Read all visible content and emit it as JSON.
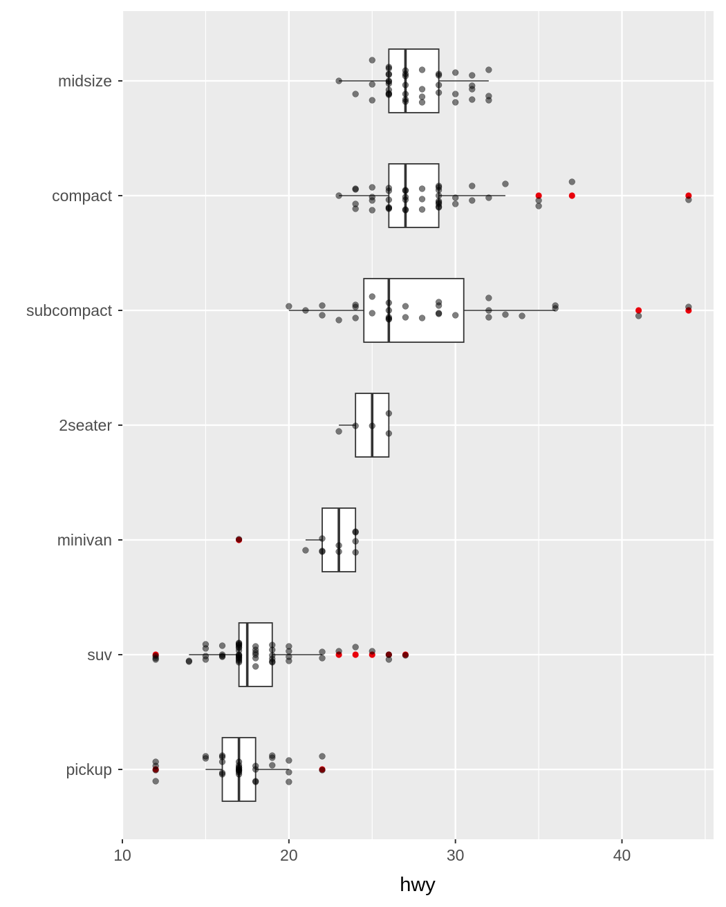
{
  "chart_data": {
    "type": "boxplot",
    "orientation": "horizontal",
    "title": "",
    "xlabel": "hwy",
    "ylabel": "",
    "xlim": [
      10,
      45.5
    ],
    "x_ticks": [
      10,
      20,
      30,
      40
    ],
    "grid": true,
    "legend": "none",
    "categories": [
      "midsize",
      "compact",
      "subcompact",
      "2seater",
      "minivan",
      "suv",
      "pickup"
    ],
    "boxes": [
      {
        "category": "midsize",
        "whisker_low": 23,
        "q1": 26,
        "median": 27,
        "q3": 29,
        "whisker_high": 32,
        "outliers": []
      },
      {
        "category": "compact",
        "whisker_low": 23,
        "q1": 26,
        "median": 27,
        "q3": 29,
        "whisker_high": 33,
        "outliers": [
          35,
          37,
          44
        ]
      },
      {
        "category": "subcompact",
        "whisker_low": 20,
        "q1": 24.5,
        "median": 26,
        "q3": 30.5,
        "whisker_high": 36,
        "outliers": [
          41,
          44
        ]
      },
      {
        "category": "2seater",
        "whisker_low": 23,
        "q1": 24,
        "median": 25,
        "q3": 26,
        "whisker_high": 26,
        "outliers": []
      },
      {
        "category": "minivan",
        "whisker_low": 21,
        "q1": 22,
        "median": 23,
        "q3": 24,
        "whisker_high": 24,
        "outliers": [
          17
        ]
      },
      {
        "category": "suv",
        "whisker_low": 14,
        "q1": 17,
        "median": 17.5,
        "q3": 19,
        "whisker_high": 22,
        "outliers": [
          12,
          23,
          24,
          25,
          26,
          27
        ]
      },
      {
        "category": "pickup",
        "whisker_low": 15,
        "q1": 16,
        "median": 17,
        "q3": 18,
        "whisker_high": 20,
        "outliers": [
          12,
          22
        ]
      }
    ],
    "jitter_points": {
      "midsize": [
        [
          23,
          0.0
        ],
        [
          24,
          0.19
        ],
        [
          25,
          0.28
        ],
        [
          25,
          0.05
        ],
        [
          26,
          0.18
        ],
        [
          26,
          -0.1
        ],
        [
          26,
          0.01
        ],
        [
          26,
          0.0
        ],
        [
          26,
          -0.18
        ],
        [
          26,
          0.13
        ],
        [
          26,
          -0.09
        ],
        [
          26,
          0.19
        ],
        [
          27,
          0.27
        ],
        [
          27,
          -0.1
        ],
        [
          27,
          0.06
        ],
        [
          27,
          -0.07
        ],
        [
          27,
          0.19
        ],
        [
          27,
          -0.15
        ],
        [
          28,
          0.23
        ],
        [
          28,
          -0.16
        ],
        [
          28,
          0.12
        ],
        [
          29,
          -0.08
        ],
        [
          29,
          0.06
        ],
        [
          29,
          0.17
        ],
        [
          30,
          -0.12
        ],
        [
          30,
          0.19
        ],
        [
          30,
          0.31
        ],
        [
          31,
          0.27
        ],
        [
          31,
          0.07
        ],
        [
          31,
          0.12
        ],
        [
          31,
          -0.08
        ],
        [
          32,
          -0.16
        ],
        [
          32,
          0.22
        ],
        [
          32,
          0.28
        ],
        [
          28,
          0.31
        ],
        [
          27,
          0.3
        ],
        [
          26,
          -0.2
        ],
        [
          26,
          0.2
        ],
        [
          25,
          -0.3
        ],
        [
          29,
          -0.1
        ],
        [
          26,
          0.04
        ]
      ],
      "compact": [
        [
          23,
          0.0
        ],
        [
          24,
          -0.09
        ],
        [
          24,
          0.12
        ],
        [
          24,
          0.19
        ],
        [
          24,
          -0.1
        ],
        [
          25,
          -0.12
        ],
        [
          25,
          0.02
        ],
        [
          25,
          0.21
        ],
        [
          25,
          0.07
        ],
        [
          26,
          0.18
        ],
        [
          26,
          -0.07
        ],
        [
          26,
          -0.11
        ],
        [
          26,
          0.06
        ],
        [
          26,
          0.17
        ],
        [
          26,
          0.19
        ],
        [
          27,
          0.06
        ],
        [
          27,
          -0.07
        ],
        [
          27,
          0.21
        ],
        [
          27,
          0.2
        ],
        [
          27,
          -0.08
        ],
        [
          27,
          0.02
        ],
        [
          28,
          0.2
        ],
        [
          28,
          -0.1
        ],
        [
          29,
          0.12
        ],
        [
          29,
          0.16
        ],
        [
          29,
          0.08
        ],
        [
          29,
          -0.12
        ],
        [
          29,
          -0.08
        ],
        [
          29,
          -0.14
        ],
        [
          29,
          0.0
        ],
        [
          29,
          0.17
        ],
        [
          30,
          0.12
        ],
        [
          30,
          0.03
        ],
        [
          31,
          0.07
        ],
        [
          31,
          -0.14
        ],
        [
          32,
          0.03
        ],
        [
          33,
          -0.17
        ],
        [
          35,
          0.15
        ],
        [
          35,
          0.07
        ],
        [
          37,
          -0.2
        ],
        [
          44,
          0.06
        ],
        [
          29,
          0.1
        ],
        [
          28,
          0.05
        ]
      ],
      "subcompact": [
        [
          20,
          -0.06
        ],
        [
          21,
          0.0
        ],
        [
          22,
          0.07
        ],
        [
          22,
          -0.07
        ],
        [
          23,
          0.14
        ],
        [
          24,
          0.11
        ],
        [
          24,
          -0.05
        ],
        [
          24,
          -0.08
        ],
        [
          25,
          -0.2
        ],
        [
          25,
          0.04
        ],
        [
          26,
          0.1
        ],
        [
          26,
          0.12
        ],
        [
          26,
          0.13
        ],
        [
          26,
          0.0
        ],
        [
          26,
          -0.11
        ],
        [
          27,
          0.1
        ],
        [
          27,
          -0.06
        ],
        [
          28,
          0.11
        ],
        [
          29,
          -0.07
        ],
        [
          29,
          0.05
        ],
        [
          29,
          0.04
        ],
        [
          29,
          -0.12
        ],
        [
          30,
          0.07
        ],
        [
          32,
          0.1
        ],
        [
          32,
          0.0
        ],
        [
          32,
          -0.18
        ],
        [
          33,
          0.06
        ],
        [
          34,
          0.08
        ],
        [
          36,
          -0.03
        ],
        [
          36,
          -0.07
        ],
        [
          41,
          0.08
        ],
        [
          44,
          -0.05
        ]
      ],
      "2seater": [
        [
          23,
          0.09
        ],
        [
          24,
          0.01
        ],
        [
          25,
          0.01
        ],
        [
          26,
          0.12
        ],
        [
          26,
          -0.17
        ]
      ],
      "minivan": [
        [
          17,
          -0.01
        ],
        [
          21,
          0.15
        ],
        [
          22,
          0.17
        ],
        [
          22,
          -0.02
        ],
        [
          22,
          0.16
        ],
        [
          23,
          0.17
        ],
        [
          23,
          0.08
        ],
        [
          24,
          0.18
        ],
        [
          24,
          0.02
        ],
        [
          24,
          -0.11
        ],
        [
          24,
          -0.12
        ]
      ],
      "suv": [
        [
          12,
          0.05
        ],
        [
          12,
          0.07
        ],
        [
          12,
          0.02
        ],
        [
          14,
          0.1
        ],
        [
          14,
          0.09
        ],
        [
          15,
          -0.15
        ],
        [
          15,
          0.07
        ],
        [
          15,
          0.02
        ],
        [
          15,
          -0.09
        ],
        [
          16,
          -0.13
        ],
        [
          16,
          0.02
        ],
        [
          16,
          0.03
        ],
        [
          17,
          0.04
        ],
        [
          17,
          0.09
        ],
        [
          17,
          0.02
        ],
        [
          17,
          0.01
        ],
        [
          17,
          -0.14
        ],
        [
          17,
          0.0
        ],
        [
          17,
          -0.16
        ],
        [
          17,
          -0.11
        ],
        [
          17,
          0.07
        ],
        [
          17,
          0.11
        ],
        [
          17,
          -0.17
        ],
        [
          17,
          -0.06
        ],
        [
          17,
          -0.1
        ],
        [
          17,
          -0.14
        ],
        [
          17,
          0.05
        ],
        [
          18,
          0.05
        ],
        [
          18,
          0.17
        ],
        [
          18,
          -0.03
        ],
        [
          18,
          -0.12
        ],
        [
          18,
          -0.07
        ],
        [
          19,
          0.01
        ],
        [
          19,
          -0.07
        ],
        [
          19,
          0.06
        ],
        [
          19,
          -0.14
        ],
        [
          19,
          0.11
        ],
        [
          20,
          0.09
        ],
        [
          20,
          -0.05
        ],
        [
          20,
          0.03
        ],
        [
          20,
          -0.12
        ],
        [
          22,
          0.05
        ],
        [
          22,
          -0.04
        ],
        [
          23,
          -0.05
        ],
        [
          24,
          -0.11
        ],
        [
          25,
          -0.05
        ],
        [
          26,
          0.07
        ],
        [
          26,
          0.0
        ],
        [
          27,
          0.01
        ],
        [
          16,
          0.0
        ],
        [
          18,
          0.0
        ],
        [
          19,
          0.1
        ]
      ],
      "pickup": [
        [
          12,
          0.17
        ],
        [
          12,
          0.01
        ],
        [
          12,
          -0.11
        ],
        [
          12,
          -0.05
        ],
        [
          15,
          -0.16
        ],
        [
          15,
          -0.19
        ],
        [
          16,
          0.07
        ],
        [
          16,
          -0.11
        ],
        [
          16,
          -0.18
        ],
        [
          16,
          -0.2
        ],
        [
          17,
          -0.06
        ],
        [
          17,
          -0.11
        ],
        [
          17,
          0.02
        ],
        [
          17,
          0.01
        ],
        [
          17,
          0.0
        ],
        [
          17,
          -0.02
        ],
        [
          17,
          0.07
        ],
        [
          17,
          0.04
        ],
        [
          17,
          -0.03
        ],
        [
          18,
          -0.05
        ],
        [
          18,
          0.18
        ],
        [
          18,
          0.17
        ],
        [
          19,
          -0.06
        ],
        [
          19,
          -0.17
        ],
        [
          19,
          -0.2
        ],
        [
          20,
          0.18
        ],
        [
          20,
          0.04
        ],
        [
          20,
          -0.13
        ],
        [
          22,
          0.01
        ],
        [
          22,
          -0.19
        ],
        [
          18,
          0.0
        ],
        [
          16,
          0.05
        ]
      ]
    },
    "colors": {
      "panel_background": "#ebebeb",
      "grid": "#ffffff",
      "box_fill": "#ffffff",
      "box_stroke": "#333333",
      "point": "#000000",
      "outlier": "#e8000b",
      "tick_text": "#4d4d4d",
      "axis_title": "#000000"
    }
  }
}
